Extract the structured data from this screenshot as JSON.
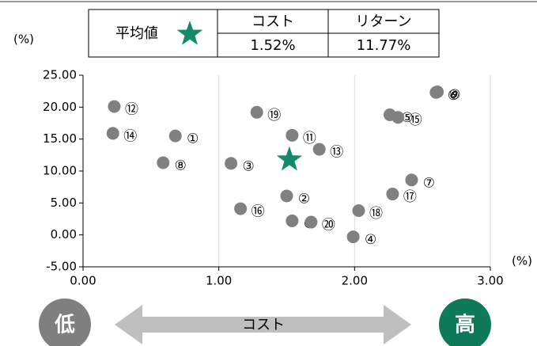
{
  "chart_data": {
    "type": "scatter",
    "y_label": "(%)",
    "x_label": "(%)",
    "xlim": [
      0,
      3
    ],
    "ylim": [
      -5,
      25
    ],
    "xticks": [
      {
        "value": 0,
        "label": "0.00"
      },
      {
        "value": 1,
        "label": "1.00"
      },
      {
        "value": 2,
        "label": "2.00"
      },
      {
        "value": 3,
        "label": "3.00"
      }
    ],
    "yticks": [
      {
        "value": -5,
        "label": "-5.00"
      },
      {
        "value": 0,
        "label": "0.00"
      },
      {
        "value": 5,
        "label": "5.00"
      },
      {
        "value": 10,
        "label": "10.00"
      },
      {
        "value": 15,
        "label": "15.00"
      },
      {
        "value": 20,
        "label": "20.00"
      },
      {
        "value": 25,
        "label": "25.00"
      }
    ],
    "grid": "x",
    "series": [
      {
        "color": "#808080",
        "point_labels": [
          "①",
          "②",
          "③",
          "④",
          "⑤",
          "⑥",
          "⑦",
          "⑧",
          "⑨",
          "⑩",
          "⑪",
          "⑫",
          "⑬",
          "⑭",
          "⑮",
          "⑯",
          "⑰",
          "⑱",
          "⑲",
          "⑳"
        ],
        "x": [
          0.68,
          1.5,
          1.09,
          1.99,
          2.26,
          2.6,
          2.42,
          0.59,
          2.61,
          1.54,
          1.54,
          0.23,
          1.74,
          0.22,
          2.32,
          1.16,
          2.28,
          2.03,
          1.28,
          1.68
        ],
        "values": [
          15.5,
          6.1,
          11.2,
          -0.3,
          18.8,
          22.3,
          8.6,
          11.3,
          22.4,
          2.2,
          15.6,
          20.1,
          13.4,
          15.9,
          18.4,
          4.1,
          6.4,
          3.8,
          19.2,
          2.0
        ]
      }
    ],
    "average": {
      "name": "平均値",
      "color": "#138a6a",
      "x": 1.52,
      "value": 11.77,
      "x_header": "コスト",
      "y_header": "リターン",
      "x_label": "1.52%",
      "value_label": "11.77%"
    },
    "bottom": {
      "low": "低",
      "high": "高",
      "arrow": "コスト"
    }
  }
}
